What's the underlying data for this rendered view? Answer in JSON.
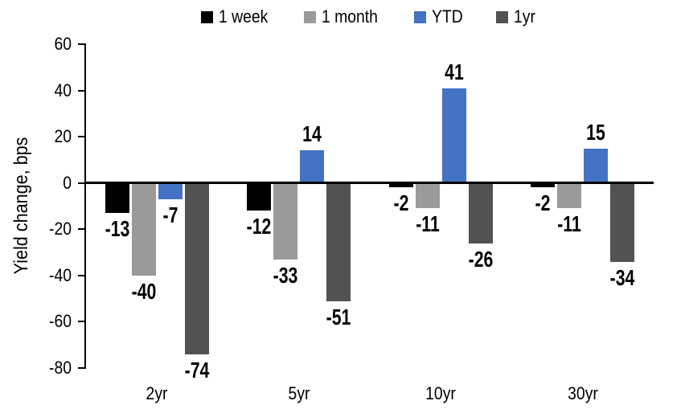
{
  "chart_data": {
    "type": "bar",
    "title": "",
    "ylabel": "Yield change, bps",
    "xlabel": "",
    "categories": [
      "2yr",
      "5yr",
      "10yr",
      "30yr"
    ],
    "series": [
      {
        "name": "1 week",
        "color": "#000000",
        "values": [
          -13,
          -12,
          -2,
          -2
        ]
      },
      {
        "name": "1 month",
        "color": "#9a9a9a",
        "values": [
          -40,
          -33,
          -11,
          -11
        ]
      },
      {
        "name": "YTD",
        "color": "#4472c4",
        "values": [
          -7,
          14,
          41,
          15
        ]
      },
      {
        "name": "1yr",
        "color": "#525252",
        "values": [
          -74,
          -51,
          -26,
          -34
        ]
      }
    ],
    "y_axis": {
      "min": -80,
      "max": 60,
      "step": 20,
      "tick_labels": [
        "60",
        "40",
        "20",
        "0",
        "-20",
        "-40",
        "-60",
        "-80"
      ]
    },
    "data_labels": true,
    "legend_position": "top",
    "grid": false
  }
}
